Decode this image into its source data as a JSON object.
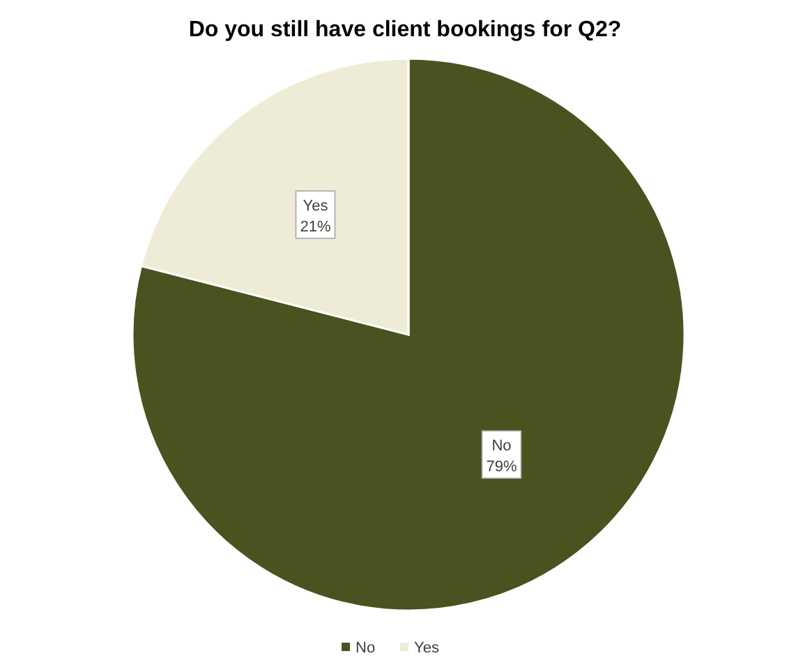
{
  "chart_data": {
    "type": "pie",
    "title": "Do you still have client bookings for Q2?",
    "categories": [
      "No",
      "Yes"
    ],
    "values": [
      79,
      21
    ],
    "colors": [
      "#4a5320",
      "#eeecd6"
    ],
    "value_labels": [
      "79%",
      "21%"
    ],
    "legend": "bottom"
  }
}
